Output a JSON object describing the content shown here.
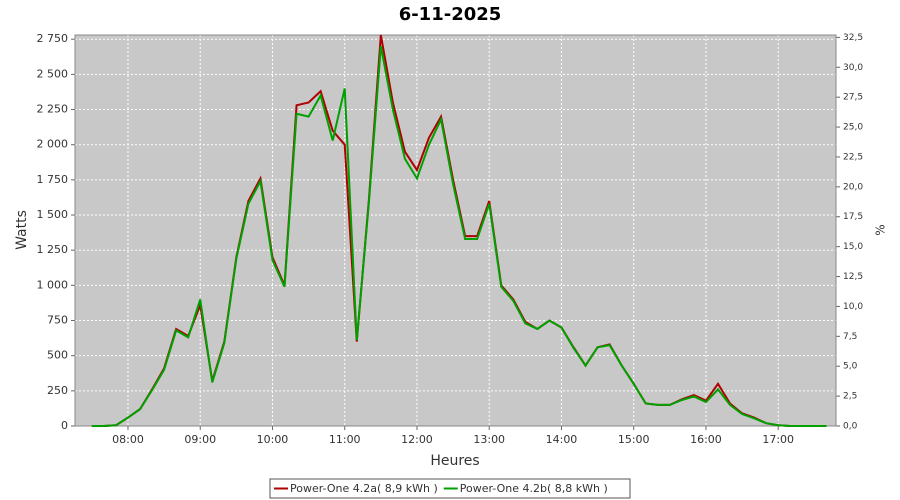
{
  "chart_data": {
    "type": "line",
    "title": "6-11-2025",
    "x_label": "Heures",
    "y_label": "Watts",
    "y2_label": "%",
    "x": [
      "07:30",
      "07:40",
      "07:50",
      "08:00",
      "08:10",
      "08:20",
      "08:30",
      "08:40",
      "08:50",
      "09:00",
      "09:10",
      "09:20",
      "09:30",
      "09:40",
      "09:50",
      "10:00",
      "10:10",
      "10:20",
      "10:30",
      "10:40",
      "10:50",
      "11:00",
      "11:10",
      "11:20",
      "11:30",
      "11:40",
      "11:50",
      "12:00",
      "12:10",
      "12:20",
      "12:30",
      "12:40",
      "12:50",
      "13:00",
      "13:10",
      "13:20",
      "13:30",
      "13:40",
      "13:50",
      "14:00",
      "14:10",
      "14:20",
      "14:30",
      "14:40",
      "14:50",
      "15:00",
      "15:10",
      "15:20",
      "15:30",
      "15:40",
      "15:50",
      "16:00",
      "16:10",
      "16:20",
      "16:30",
      "16:40",
      "16:50",
      "17:00",
      "17:10",
      "17:20",
      "17:30",
      "17:40"
    ],
    "series": [
      {
        "name": "Power-One 4.2a( 8,9 kWh )",
        "color": "#b00000",
        "values": [
          0,
          0,
          5,
          60,
          120,
          260,
          410,
          690,
          640,
          860,
          320,
          600,
          1200,
          1600,
          1760,
          1200,
          1000,
          2280,
          2300,
          2380,
          2100,
          2000,
          600,
          1600,
          2780,
          2300,
          1950,
          1820,
          2050,
          2200,
          1750,
          1350,
          1350,
          1600,
          1000,
          900,
          740,
          690,
          750,
          700,
          560,
          430,
          560,
          580,
          430,
          300,
          160,
          150,
          150,
          190,
          220,
          180,
          300,
          160,
          90,
          60,
          20,
          5,
          0,
          0,
          0,
          0
        ]
      },
      {
        "name": "Power-One 4.2b( 8,8 kWh )",
        "color": "#00a000",
        "values": [
          0,
          0,
          5,
          60,
          120,
          255,
          400,
          680,
          630,
          900,
          310,
          590,
          1190,
          1580,
          1740,
          1180,
          990,
          2220,
          2200,
          2350,
          2030,
          2400,
          610,
          1580,
          2700,
          2250,
          1900,
          1760,
          2000,
          2180,
          1720,
          1330,
          1330,
          1580,
          990,
          890,
          730,
          690,
          750,
          700,
          555,
          430,
          560,
          575,
          430,
          300,
          160,
          150,
          150,
          185,
          210,
          170,
          260,
          150,
          85,
          55,
          20,
          5,
          0,
          0,
          0,
          0
        ]
      }
    ],
    "xlim": [
      "07:16",
      "17:48"
    ],
    "xticks": [
      "08:00",
      "09:00",
      "10:00",
      "11:00",
      "12:00",
      "13:00",
      "14:00",
      "15:00",
      "16:00",
      "17:00"
    ],
    "ylim": [
      0,
      2780
    ],
    "yticks": [
      0,
      250,
      500,
      750,
      {
        "value": 1000,
        "label": "1 000"
      },
      {
        "value": 1250,
        "label": "1 250"
      },
      {
        "value": 1500,
        "label": "1 500"
      },
      {
        "value": 1750,
        "label": "1 750"
      },
      {
        "value": 2000,
        "label": "2 000"
      },
      {
        "value": 2250,
        "label": "2 250"
      },
      {
        "value": 2500,
        "label": "2 500"
      },
      {
        "value": 2750,
        "label": "2 750"
      }
    ],
    "y2lim": [
      0,
      32.7
    ],
    "y2ticks": [
      {
        "value": 0,
        "label": "0,0"
      },
      {
        "value": 2.5,
        "label": "2,5"
      },
      {
        "value": 5,
        "label": "5,0"
      },
      {
        "value": 7.5,
        "label": "7,5"
      },
      {
        "value": 10,
        "label": "10,0"
      },
      {
        "value": 12.5,
        "label": "12,5"
      },
      {
        "value": 15,
        "label": "15,0"
      },
      {
        "value": 17.5,
        "label": "17,5"
      },
      {
        "value": 20,
        "label": "20,0"
      },
      {
        "value": 22.5,
        "label": "22,5"
      },
      {
        "value": 25,
        "label": "25,0"
      },
      {
        "value": 27.5,
        "label": "27,5"
      },
      {
        "value": 30,
        "label": "30,0"
      },
      {
        "value": 32.5,
        "label": "32,5"
      }
    ],
    "grid": true
  }
}
